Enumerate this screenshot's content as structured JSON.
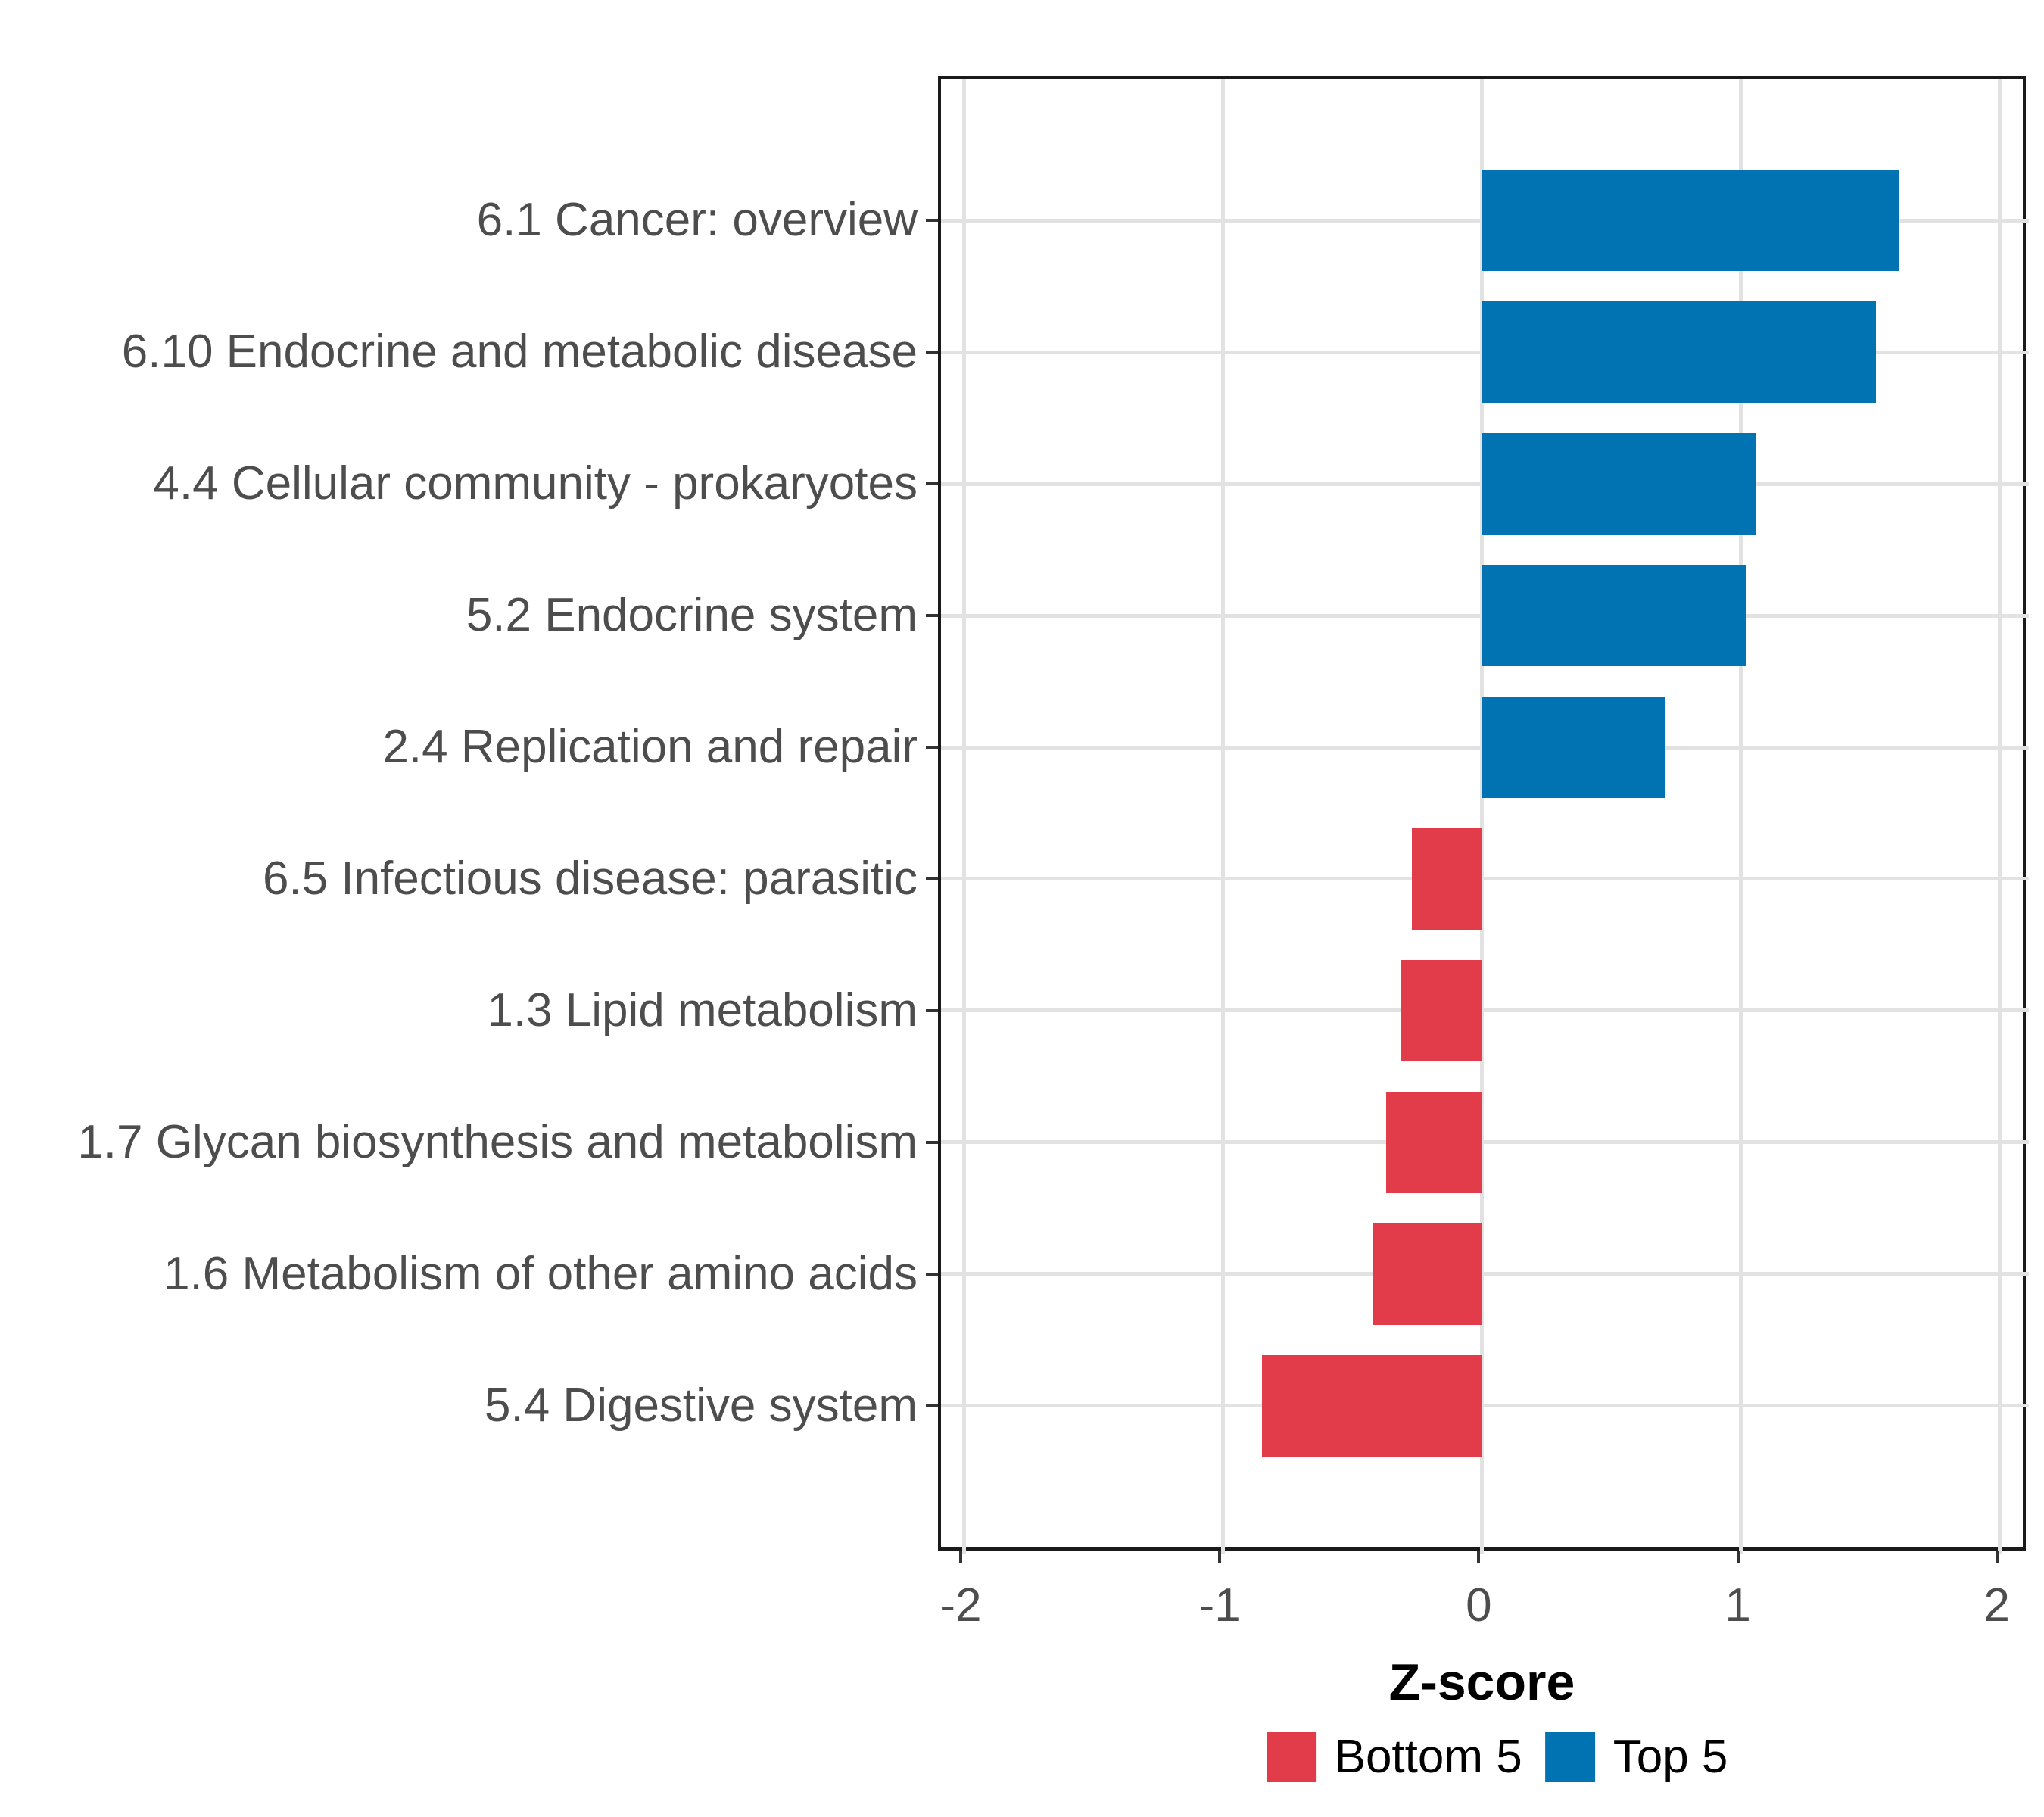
{
  "chart_data": {
    "type": "bar",
    "orientation": "horizontal",
    "title": "",
    "xlabel": "Z-score",
    "ylabel": "",
    "xlim": [
      -2,
      2
    ],
    "xticks": [
      "-2",
      "-1",
      "0",
      "1",
      "2"
    ],
    "xtick_values": [
      -2,
      -1,
      0,
      1,
      2
    ],
    "grid": "major-only",
    "legend_position": "bottom",
    "categories": [
      "6.1 Cancer: overview",
      "6.10 Endocrine and metabolic disease",
      "4.4 Cellular community - prokaryotes",
      "5.2 Endocrine system",
      "2.4 Replication and repair",
      "6.5 Infectious disease: parasitic",
      "1.3 Lipid metabolism",
      "1.7 Glycan biosynthesis and metabolism",
      "1.6 Metabolism of other amino acids",
      "5.4 Digestive system"
    ],
    "values": [
      1.61,
      1.52,
      1.06,
      1.02,
      0.71,
      -0.27,
      -0.31,
      -0.37,
      -0.42,
      -0.85
    ],
    "groups": [
      "Top 5",
      "Top 5",
      "Top 5",
      "Top 5",
      "Top 5",
      "Bottom 5",
      "Bottom 5",
      "Bottom 5",
      "Bottom 5",
      "Bottom 5"
    ],
    "legend": [
      {
        "label": "Bottom 5",
        "color": "#e23b4a"
      },
      {
        "label": "Top 5",
        "color": "#0173b2"
      }
    ]
  },
  "colors": {
    "top5_bar": "#0173b2",
    "bottom5_bar": "#e23b4a",
    "panel_border": "#1a1a1a",
    "gridline": "#e2e2e2",
    "axis_text": "#4d4d4d",
    "axis_title": "#000000",
    "tick_mark": "#333333",
    "background": "#ffffff"
  }
}
